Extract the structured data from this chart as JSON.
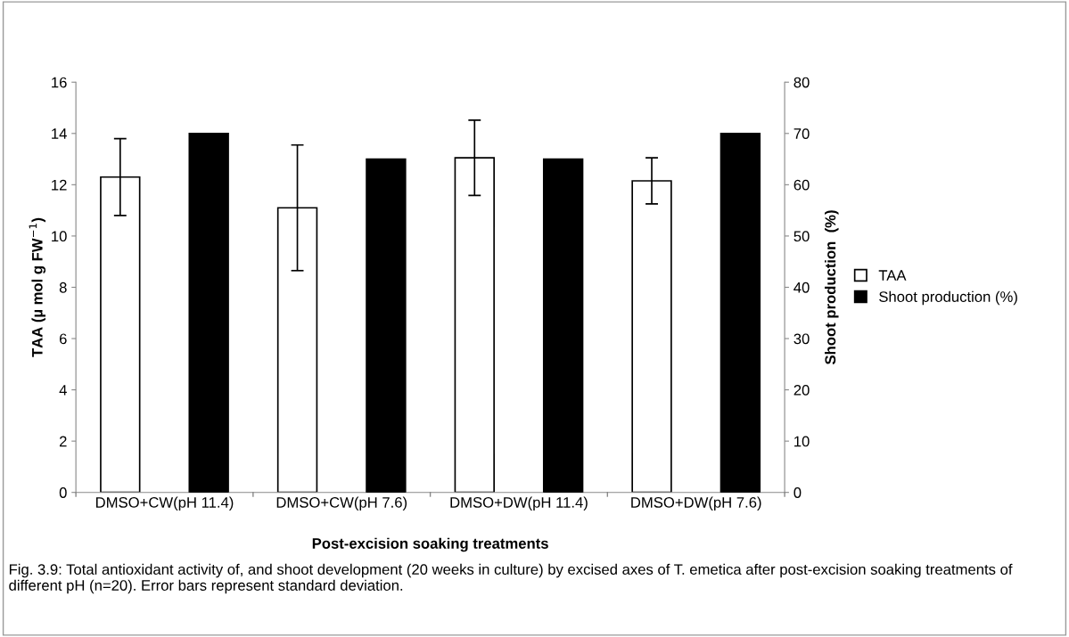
{
  "chart_data": {
    "type": "bar",
    "categories": [
      "DMSO+CW(pH 11.4)",
      "DMSO+CW(pH 7.6)",
      "DMSO+DW(pH 11.4)",
      "DMSO+DW(pH 7.6)"
    ],
    "xlabel": "Post-excision soaking treatments",
    "ylabel": "TAA (µ mol g FW$^{−1}$)",
    "y2label": "Shoot production  (%)",
    "series": [
      {
        "name": "TAA",
        "color": "#ffffff",
        "values": [
          12.3,
          11.1,
          13.05,
          12.15
        ],
        "errors": [
          1.5,
          2.45,
          1.47,
          0.9
        ]
      },
      {
        "name": "Shoot production (%)",
        "color": "#000000",
        "values": [
          70,
          65,
          65,
          70
        ],
        "axis": "y2"
      }
    ],
    "ylim": [
      0,
      16
    ],
    "yticks": [
      0,
      2,
      4,
      6,
      8,
      10,
      12,
      14,
      16
    ],
    "y2lim": [
      0,
      80
    ],
    "y2ticks": [
      0,
      10,
      20,
      30,
      40,
      50,
      60,
      70,
      80
    ],
    "grid": false,
    "legend": "right",
    "annotations": [
      "Fig. 3.9: Total antioxidant activity of, and shoot development (20 weeks in culture) by excised axes of T. emetica after post-excision soaking treatments of different pH (n=20). Error bars represent standard deviation."
    ]
  }
}
